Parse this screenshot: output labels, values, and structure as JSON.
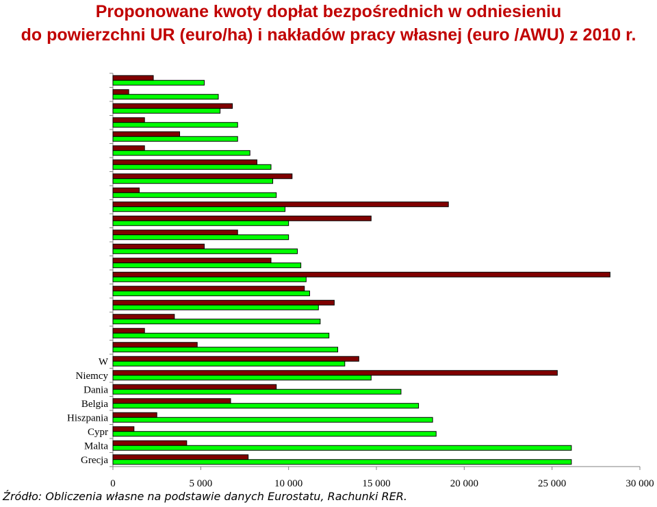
{
  "title": {
    "line1": "Proponowane kwoty dopłat bezpośrednich w odniesieniu",
    "line2": "do powierzchni UR (euro/ha) i nakładów pracy własnej (euro /AWU) z 2010 r."
  },
  "source": "Źródło: Obliczenia własne na podstawie danych Eurostatu, Rachunki RER.",
  "colors": {
    "series1": "#800000",
    "series2": "#00ff00",
    "border": "#000000"
  },
  "chart_data": {
    "type": "bar",
    "orientation": "horizontal",
    "categories": [
      "",
      "",
      "",
      "",
      "",
      "",
      "",
      "",
      "",
      "",
      "",
      "",
      "",
      "",
      "",
      "",
      "",
      "",
      "",
      "",
      "W",
      "Niemcy",
      "Dania",
      "Belgia",
      "Hiszpania",
      "Cypr",
      "Malta",
      "Grecja"
    ],
    "series": [
      {
        "values": [
          2300,
          900,
          6800,
          1800,
          3800,
          1800,
          8200,
          10200,
          1500,
          19100,
          14700,
          7100,
          5200,
          9000,
          28300,
          10900,
          12600,
          3500,
          1800,
          4800,
          14000,
          25300,
          9300,
          6700,
          2500,
          1200,
          4200,
          7700
        ]
      },
      {
        "values": [
          5200,
          6000,
          6100,
          7100,
          7100,
          7800,
          9000,
          9100,
          9300,
          9800,
          10000,
          10000,
          10500,
          10700,
          11000,
          11200,
          11700,
          11800,
          12300,
          12800,
          13200,
          14700,
          16400,
          17400,
          18200,
          18400,
          26100,
          26100
        ]
      }
    ],
    "x_ticks": [
      "0",
      "5 000",
      "10 000",
      "15 000",
      "20 000",
      "25 000",
      "30 000"
    ],
    "xlim": [
      0,
      30000
    ],
    "grid": false,
    "legend": "none"
  }
}
